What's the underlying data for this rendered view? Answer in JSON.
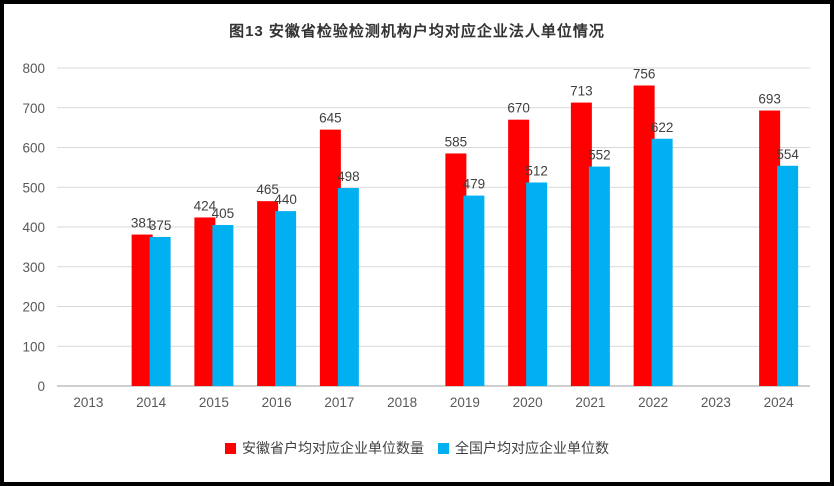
{
  "chart_data": {
    "type": "bar",
    "title": "图13  安徽省检验检测机构户均对应企业法人单位情况",
    "categories": [
      "2013",
      "2014",
      "2015",
      "2016",
      "2017",
      "2018",
      "2019",
      "2020",
      "2021",
      "2022",
      "2023",
      "2024"
    ],
    "series": [
      {
        "name": "安徽省户均对应企业单位数量",
        "color": "#FF0000",
        "values": [
          null,
          381,
          424,
          465,
          645,
          null,
          585,
          670,
          713,
          756,
          null,
          693
        ]
      },
      {
        "name": "全国户均对应企业单位数",
        "color": "#00B0F0",
        "values": [
          null,
          375,
          405,
          440,
          498,
          null,
          479,
          512,
          552,
          622,
          null,
          554
        ]
      }
    ],
    "ylim": [
      0,
      800
    ],
    "ytick_interval": 100,
    "yticks": [
      0,
      100,
      200,
      300,
      400,
      500,
      600,
      700,
      800
    ],
    "grid": true,
    "legend_position": "bottom",
    "data_labels": true,
    "colors": {
      "grid": "#D9D9D9",
      "axis_line": "#BFBFBF",
      "axis_text": "#595959",
      "data_label_text": "#404040",
      "frame_border": "#000000",
      "background": "#FFFFFF"
    }
  }
}
